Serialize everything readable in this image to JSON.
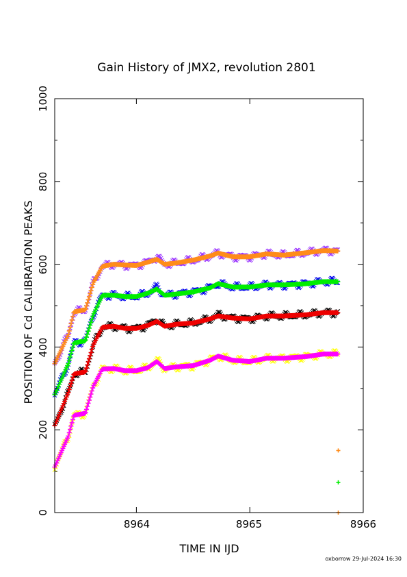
{
  "chart_data": {
    "type": "scatter",
    "title": "Gain History of JMX2, revolution 2801",
    "xlabel": "TIME IN IJD",
    "ylabel": "POSITION OF Cd CALIBRATION PEAKS",
    "xlim": [
      8963.28,
      8966
    ],
    "ylim": [
      0,
      1000
    ],
    "x_ticks": [
      "8964",
      "8965",
      "8966"
    ],
    "y_ticks": [
      "0",
      "200",
      "400",
      "600",
      "800",
      "1000"
    ],
    "footer": "oxborrow 29-Jul-2024 16:30",
    "grid": false,
    "series": [
      {
        "color": "#9933ff",
        "marker": "x",
        "points": [
          [
            8963.28,
            360
          ],
          [
            8963.4,
            430
          ],
          [
            8963.45,
            485
          ],
          [
            8963.55,
            490
          ],
          [
            8963.62,
            555
          ],
          [
            8963.7,
            595
          ],
          [
            8963.8,
            600
          ],
          [
            8963.9,
            598
          ],
          [
            8964.0,
            597
          ],
          [
            8964.1,
            605
          ],
          [
            8964.18,
            618
          ],
          [
            8964.25,
            600
          ],
          [
            8964.35,
            603
          ],
          [
            8964.5,
            610
          ],
          [
            8964.65,
            620
          ],
          [
            8964.72,
            627
          ],
          [
            8964.85,
            618
          ],
          [
            8965.0,
            618
          ],
          [
            8965.15,
            625
          ],
          [
            8965.3,
            622
          ],
          [
            8965.5,
            628
          ],
          [
            8965.65,
            633
          ],
          [
            8965.78,
            632
          ]
        ]
      },
      {
        "color": "#ff8c1a",
        "marker": "+",
        "points": [
          [
            8963.28,
            360
          ],
          [
            8963.4,
            430
          ],
          [
            8963.45,
            485
          ],
          [
            8963.55,
            490
          ],
          [
            8963.62,
            555
          ],
          [
            8963.7,
            595
          ],
          [
            8963.8,
            600
          ],
          [
            8963.9,
            598
          ],
          [
            8964.0,
            597
          ],
          [
            8964.1,
            605
          ],
          [
            8964.18,
            612
          ],
          [
            8964.25,
            600
          ],
          [
            8964.35,
            603
          ],
          [
            8964.5,
            610
          ],
          [
            8964.65,
            620
          ],
          [
            8964.72,
            627
          ],
          [
            8964.85,
            618
          ],
          [
            8965.0,
            618
          ],
          [
            8965.15,
            625
          ],
          [
            8965.3,
            622
          ],
          [
            8965.5,
            628
          ],
          [
            8965.65,
            633
          ],
          [
            8965.78,
            632
          ]
        ]
      },
      {
        "color": "#0000ee",
        "marker": "x",
        "points": [
          [
            8963.28,
            285
          ],
          [
            8963.4,
            360
          ],
          [
            8963.45,
            410
          ],
          [
            8963.55,
            415
          ],
          [
            8963.62,
            478
          ],
          [
            8963.7,
            525
          ],
          [
            8963.8,
            525
          ],
          [
            8963.9,
            522
          ],
          [
            8964.0,
            522
          ],
          [
            8964.1,
            530
          ],
          [
            8964.18,
            545
          ],
          [
            8964.25,
            525
          ],
          [
            8964.35,
            528
          ],
          [
            8964.5,
            533
          ],
          [
            8964.65,
            543
          ],
          [
            8964.72,
            553
          ],
          [
            8964.85,
            545
          ],
          [
            8965.0,
            545
          ],
          [
            8965.15,
            550
          ],
          [
            8965.3,
            550
          ],
          [
            8965.5,
            553
          ],
          [
            8965.65,
            558
          ],
          [
            8965.78,
            558
          ]
        ]
      },
      {
        "color": "#00ee00",
        "marker": "+",
        "points": [
          [
            8963.28,
            285
          ],
          [
            8963.4,
            360
          ],
          [
            8963.45,
            410
          ],
          [
            8963.55,
            415
          ],
          [
            8963.62,
            478
          ],
          [
            8963.7,
            525
          ],
          [
            8963.8,
            525
          ],
          [
            8963.9,
            522
          ],
          [
            8964.0,
            522
          ],
          [
            8964.1,
            530
          ],
          [
            8964.18,
            540
          ],
          [
            8964.25,
            525
          ],
          [
            8964.35,
            528
          ],
          [
            8964.5,
            533
          ],
          [
            8964.65,
            543
          ],
          [
            8964.72,
            553
          ],
          [
            8964.85,
            545
          ],
          [
            8965.0,
            545
          ],
          [
            8965.15,
            550
          ],
          [
            8965.3,
            550
          ],
          [
            8965.5,
            553
          ],
          [
            8965.65,
            558
          ],
          [
            8965.78,
            558
          ]
        ]
      },
      {
        "color": "#000000",
        "marker": "x",
        "points": [
          [
            8963.28,
            210
          ],
          [
            8963.4,
            290
          ],
          [
            8963.45,
            335
          ],
          [
            8963.55,
            340
          ],
          [
            8963.62,
            405
          ],
          [
            8963.7,
            448
          ],
          [
            8963.8,
            450
          ],
          [
            8963.9,
            445
          ],
          [
            8964.0,
            445
          ],
          [
            8964.1,
            452
          ],
          [
            8964.18,
            468
          ],
          [
            8964.25,
            450
          ],
          [
            8964.35,
            455
          ],
          [
            8964.5,
            458
          ],
          [
            8964.65,
            468
          ],
          [
            8964.72,
            478
          ],
          [
            8964.85,
            470
          ],
          [
            8965.0,
            468
          ],
          [
            8965.15,
            475
          ],
          [
            8965.3,
            475
          ],
          [
            8965.5,
            478
          ],
          [
            8965.65,
            483
          ],
          [
            8965.78,
            483
          ]
        ]
      },
      {
        "color": "#ee0000",
        "marker": "+",
        "points": [
          [
            8963.28,
            210
          ],
          [
            8963.4,
            290
          ],
          [
            8963.45,
            335
          ],
          [
            8963.55,
            340
          ],
          [
            8963.62,
            405
          ],
          [
            8963.7,
            448
          ],
          [
            8963.8,
            450
          ],
          [
            8963.9,
            445
          ],
          [
            8964.0,
            445
          ],
          [
            8964.1,
            452
          ],
          [
            8964.18,
            462
          ],
          [
            8964.25,
            450
          ],
          [
            8964.35,
            455
          ],
          [
            8964.5,
            458
          ],
          [
            8964.65,
            468
          ],
          [
            8964.72,
            475
          ],
          [
            8964.85,
            470
          ],
          [
            8965.0,
            468
          ],
          [
            8965.15,
            475
          ],
          [
            8965.3,
            475
          ],
          [
            8965.5,
            478
          ],
          [
            8965.65,
            483
          ],
          [
            8965.78,
            483
          ]
        ]
      },
      {
        "color": "#ffff00",
        "marker": "x",
        "points": [
          [
            8963.28,
            110
          ],
          [
            8963.4,
            185
          ],
          [
            8963.45,
            235
          ],
          [
            8963.55,
            240
          ],
          [
            8963.62,
            305
          ],
          [
            8963.7,
            347
          ],
          [
            8963.8,
            348
          ],
          [
            8963.9,
            343
          ],
          [
            8964.0,
            343
          ],
          [
            8964.1,
            350
          ],
          [
            8964.18,
            368
          ],
          [
            8964.25,
            348
          ],
          [
            8964.35,
            352
          ],
          [
            8964.5,
            355
          ],
          [
            8964.65,
            368
          ],
          [
            8964.72,
            378
          ],
          [
            8964.85,
            368
          ],
          [
            8965.0,
            365
          ],
          [
            8965.15,
            373
          ],
          [
            8965.3,
            373
          ],
          [
            8965.5,
            377
          ],
          [
            8965.65,
            383
          ],
          [
            8965.78,
            383
          ]
        ]
      },
      {
        "color": "#ff00ff",
        "marker": "+",
        "points": [
          [
            8963.28,
            110
          ],
          [
            8963.4,
            185
          ],
          [
            8963.45,
            235
          ],
          [
            8963.55,
            240
          ],
          [
            8963.62,
            305
          ],
          [
            8963.7,
            347
          ],
          [
            8963.8,
            348
          ],
          [
            8963.9,
            343
          ],
          [
            8964.0,
            343
          ],
          [
            8964.1,
            350
          ],
          [
            8964.18,
            365
          ],
          [
            8964.25,
            348
          ],
          [
            8964.35,
            352
          ],
          [
            8964.5,
            355
          ],
          [
            8964.65,
            368
          ],
          [
            8964.72,
            378
          ],
          [
            8964.85,
            368
          ],
          [
            8965.0,
            365
          ],
          [
            8965.15,
            373
          ],
          [
            8965.3,
            373
          ],
          [
            8965.5,
            377
          ],
          [
            8965.65,
            383
          ],
          [
            8965.78,
            383
          ]
        ]
      }
    ],
    "outliers": [
      {
        "color": "#ff8c1a",
        "marker": "+",
        "x": 8965.78,
        "y": 150
      },
      {
        "color": "#00ee00",
        "marker": "+",
        "x": 8965.78,
        "y": 73
      },
      {
        "color": "#ff8c1a",
        "marker": "+",
        "x": 8965.78,
        "y": 0
      }
    ]
  }
}
